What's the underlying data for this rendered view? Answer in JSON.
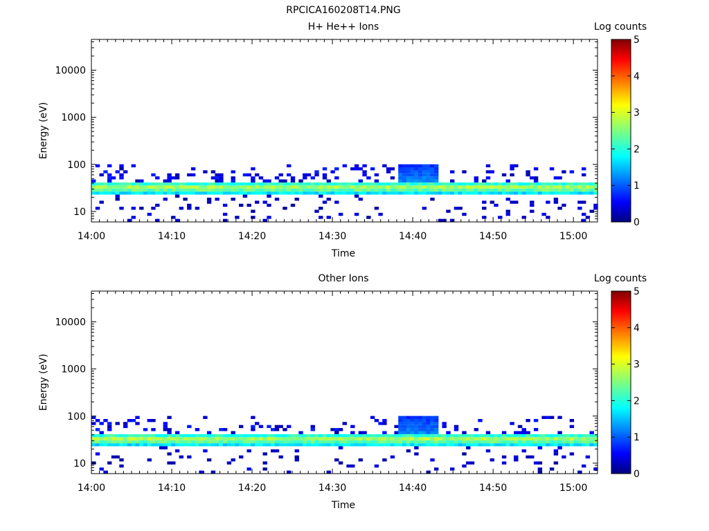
{
  "figure_title": "RPCICA160208T14.PNG",
  "chart_data": [
    {
      "type": "heatmap",
      "title": "H+ He++ Ions",
      "xlabel": "Time",
      "ylabel": "Energy (eV)",
      "colorbar_label": "Log counts",
      "y_scale": "log",
      "ylim": [
        6,
        45000
      ],
      "xlim": [
        "14:00",
        "15:03"
      ],
      "x_ticks": [
        "14:00",
        "14:10",
        "14:20",
        "14:30",
        "14:40",
        "14:50",
        "15:00"
      ],
      "y_ticks": [
        "10",
        "100",
        "1000",
        "10000"
      ],
      "colorbar_ticks": [
        "0",
        "1",
        "2",
        "3",
        "4",
        "5"
      ],
      "clim": [
        0,
        5
      ],
      "core_band": {
        "energy_low": 24,
        "energy_high": 40,
        "peak_energy": 32,
        "peak_log_counts": 2.8
      },
      "enhancement": {
        "time_start": "14:38",
        "time_end": "14:43",
        "energy_max": 95,
        "log_counts": 1.3
      }
    },
    {
      "type": "heatmap",
      "title": "Other Ions",
      "xlabel": "Time",
      "ylabel": "Energy (eV)",
      "colorbar_label": "Log counts",
      "y_scale": "log",
      "ylim": [
        6,
        45000
      ],
      "xlim": [
        "14:00",
        "15:03"
      ],
      "x_ticks": [
        "14:00",
        "14:10",
        "14:20",
        "14:30",
        "14:40",
        "14:50",
        "15:00"
      ],
      "y_ticks": [
        "10",
        "100",
        "1000",
        "10000"
      ],
      "colorbar_ticks": [
        "0",
        "1",
        "2",
        "3",
        "4",
        "5"
      ],
      "clim": [
        0,
        5
      ],
      "core_band": {
        "energy_low": 22,
        "energy_high": 40,
        "peak_energy": 32,
        "peak_log_counts": 2.8
      },
      "enhancement": {
        "time_start": "14:38",
        "time_end": "14:43",
        "energy_max": 95,
        "log_counts": 1.3
      }
    }
  ]
}
